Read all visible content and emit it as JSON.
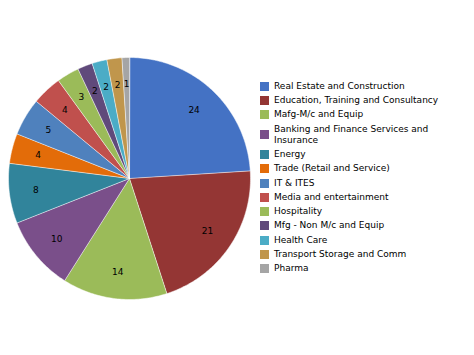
{
  "chart_data": {
    "type": "pie",
    "categories": [
      "Real Estate and Construction",
      "Education, Training and Consultancy",
      "Mafg-M/c and Equip",
      "Banking and Finance Services and Insurance",
      "Energy",
      "Trade (Retail and Service)",
      "IT & ITES",
      "Media and entertainment",
      "Hospitality",
      "Mfg - Non M/c and Equip",
      "Health Care",
      "Transport Storage and Comm",
      "Pharma"
    ],
    "values": [
      24,
      21,
      14,
      10,
      8,
      4,
      5,
      4,
      3,
      2,
      2,
      2,
      1
    ],
    "colors": [
      "#4472C4",
      "#943634",
      "#9BBB59",
      "#7A4F8A",
      "#31849B",
      "#E36C09",
      "#4F81BD",
      "#C0504D",
      "#9BBB59",
      "#604A7B",
      "#4BACC6",
      "#C0964C",
      "#A5A5A5"
    ],
    "data_labels": true,
    "legend": "right"
  }
}
